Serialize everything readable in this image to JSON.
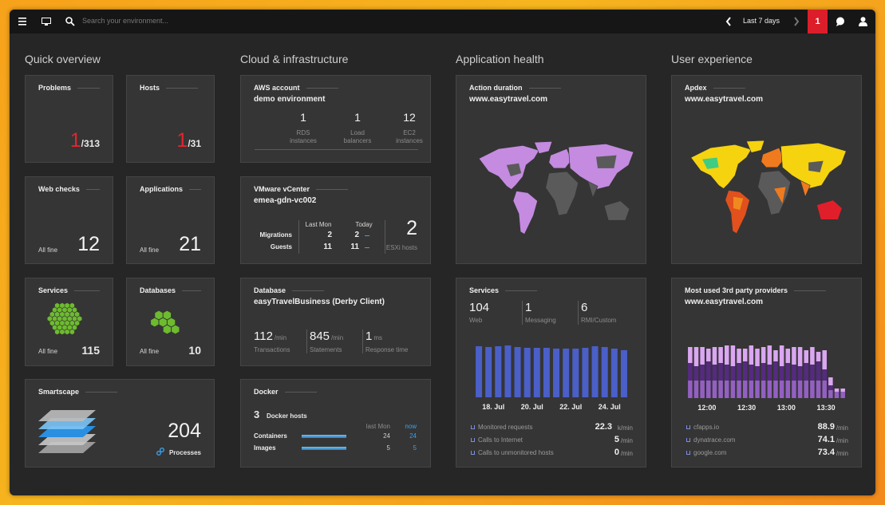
{
  "topbar": {
    "search_placeholder": "Search your environment...",
    "timeframe": "Last 7 days",
    "alerts": 1
  },
  "sections": [
    "Quick overview",
    "Cloud & infrastructure",
    "Application health",
    "User experience"
  ],
  "problems": {
    "title": "Problems",
    "value": 1,
    "suffix": "/313"
  },
  "hosts": {
    "title": "Hosts",
    "value": 1,
    "suffix": "/31"
  },
  "web_checks": {
    "title": "Web checks",
    "status": "All fine",
    "value": 12
  },
  "applications": {
    "title": "Applications",
    "status": "All fine",
    "value": 21
  },
  "services_overview": {
    "title": "Services",
    "status": "All fine",
    "value": 115
  },
  "databases": {
    "title": "Databases",
    "status": "All fine",
    "value": 10
  },
  "smartscape": {
    "title": "Smartscape",
    "value": 204,
    "label": "Processes"
  },
  "aws": {
    "title": "AWS account",
    "subtitle": "demo environment",
    "metrics": [
      {
        "value": 1,
        "label": "RDS instances"
      },
      {
        "value": 1,
        "label": "Load balancers"
      },
      {
        "value": 12,
        "label": "EC2 instances"
      }
    ]
  },
  "vmware": {
    "title": "VMware vCenter",
    "subtitle": "emea-gdn-vc002",
    "columns": [
      "Last Mon",
      "Today"
    ],
    "rows": [
      {
        "label": "Migrations",
        "values": [
          2,
          2
        ]
      },
      {
        "label": "Guests",
        "values": [
          11,
          11
        ]
      }
    ],
    "hosts": {
      "value": 2,
      "label": "ESXi hosts"
    }
  },
  "database": {
    "title": "Database",
    "subtitle": "easyTravelBusiness (Derby Client)",
    "metrics": [
      {
        "value": 112,
        "unit": "/min",
        "label": "Transactions"
      },
      {
        "value": 845,
        "unit": "/min",
        "label": "Statements"
      },
      {
        "value": 1,
        "unit": "ms",
        "label": "Response time"
      }
    ]
  },
  "docker": {
    "title": "Docker",
    "hosts": {
      "value": 3,
      "label": "Docker hosts"
    },
    "columns": [
      "last Mon",
      "now"
    ],
    "rows": [
      {
        "label": "Containers",
        "values": [
          24,
          24
        ]
      },
      {
        "label": "Images",
        "values": [
          5,
          5
        ]
      }
    ]
  },
  "action_duration": {
    "title": "Action duration",
    "subtitle": "www.easytravel.com"
  },
  "services": {
    "title": "Services",
    "metrics": [
      {
        "value": 104,
        "label": "Web"
      },
      {
        "value": 1,
        "label": "Messaging"
      },
      {
        "value": 6,
        "label": "RMI/Custom"
      }
    ],
    "chart_data": {
      "type": "bar",
      "color": "#4a5fc8",
      "x_labels": [
        "18. Jul",
        "20. Jul",
        "22. Jul",
        "24. Jul"
      ],
      "values": [
        65,
        64,
        65,
        66,
        64,
        63,
        63,
        63,
        62,
        62,
        62,
        63,
        65,
        64,
        62,
        60
      ]
    },
    "list": [
      {
        "label": "Monitored requests",
        "value": 22.3,
        "unit": "k/min"
      },
      {
        "label": "Calls to Internet",
        "value": 5,
        "unit": "/min"
      },
      {
        "label": "Calls to unmonitored hosts",
        "value": 0,
        "unit": "/min"
      }
    ]
  },
  "apdex": {
    "title": "Apdex",
    "subtitle": "www.easytravel.com"
  },
  "third_party": {
    "title": "Most used 3rd party providers",
    "subtitle": "www.easytravel.com",
    "chart_data": {
      "type": "stacked_bar",
      "x_labels": [
        "12:00",
        "12:30",
        "13:00",
        "13:30"
      ],
      "series": [
        {
          "color": "#9360c2",
          "values": [
            22,
            22,
            22,
            22,
            22,
            22,
            22,
            22,
            22,
            22,
            22,
            22,
            22,
            22,
            22,
            22,
            22,
            22,
            22,
            22,
            22,
            22,
            22,
            10,
            8,
            8
          ]
        },
        {
          "color": "#552a80",
          "values": [
            22,
            18,
            20,
            24,
            20,
            22,
            20,
            18,
            22,
            24,
            20,
            18,
            22,
            20,
            24,
            18,
            22,
            20,
            18,
            22,
            20,
            24,
            14,
            6,
            0,
            0
          ]
        },
        {
          "color": "#dba6f2",
          "values": [
            20,
            24,
            22,
            16,
            22,
            20,
            24,
            26,
            18,
            16,
            24,
            22,
            20,
            24,
            14,
            26,
            18,
            22,
            24,
            16,
            22,
            12,
            24,
            10,
            4,
            4
          ]
        }
      ]
    },
    "list": [
      {
        "label": "cfapps.io",
        "value": 88.9,
        "unit": "/min"
      },
      {
        "label": "dynatrace.com",
        "value": 74.1,
        "unit": "/min"
      },
      {
        "label": "google.com",
        "value": 73.4,
        "unit": "/min"
      }
    ]
  }
}
